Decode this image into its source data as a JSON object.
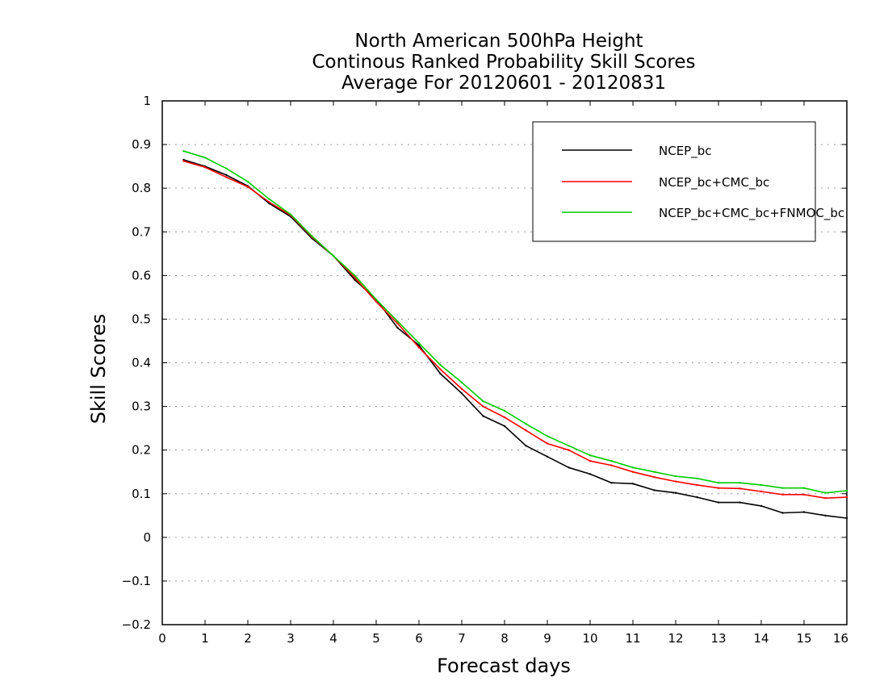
{
  "chart_data": {
    "type": "line",
    "title": [
      "North American 500hPa Height",
      "Continous Ranked Probability Skill Scores",
      "Average For 20120601 - 20120831"
    ],
    "xlabel": "Forecast days",
    "ylabel": "Skill Scores",
    "xlim": [
      0,
      16
    ],
    "ylim": [
      -0.2,
      1
    ],
    "xticks": [
      "0",
      "1",
      "2",
      "3",
      "4",
      "5",
      "6",
      "7",
      "8",
      "9",
      "10",
      "11",
      "12",
      "13",
      "14",
      "15",
      "16"
    ],
    "yticks": [
      "1",
      "0.9",
      "0.8",
      "0.7",
      "0.6",
      "0.5",
      "0.4",
      "0.3",
      "0.2",
      "0.1",
      "0",
      "-0.1",
      "-0.2"
    ],
    "grid": true,
    "legend_position": "top-right",
    "x": [
      0.5,
      1,
      1.5,
      2,
      2.5,
      3,
      3.5,
      4,
      4.5,
      5,
      5.5,
      6,
      6.5,
      7,
      7.5,
      8,
      8.5,
      9,
      9.5,
      10,
      10.5,
      11,
      11.5,
      12,
      12.5,
      13,
      13.5,
      14,
      14.5,
      15,
      15.5,
      16
    ],
    "series": [
      {
        "name": "NCEP_bc",
        "color": "#000000",
        "values": [
          0.865,
          0.85,
          0.83,
          0.805,
          0.765,
          0.735,
          0.685,
          0.645,
          0.59,
          0.545,
          0.48,
          0.44,
          0.375,
          0.33,
          0.278,
          0.255,
          0.21,
          0.185,
          0.16,
          0.145,
          0.125,
          0.123,
          0.108,
          0.102,
          0.092,
          0.08,
          0.08,
          0.072,
          0.056,
          0.058,
          0.05,
          0.044
        ]
      },
      {
        "name": "NCEP_bc+CMC_bc",
        "color": "#ff0000",
        "values": [
          0.862,
          0.848,
          0.825,
          0.803,
          0.768,
          0.738,
          0.688,
          0.645,
          0.595,
          0.54,
          0.49,
          0.435,
          0.385,
          0.34,
          0.3,
          0.275,
          0.245,
          0.215,
          0.2,
          0.175,
          0.165,
          0.15,
          0.138,
          0.128,
          0.12,
          0.113,
          0.112,
          0.105,
          0.098,
          0.098,
          0.09,
          0.092
        ]
      },
      {
        "name": "NCEP_bc+CMC_bc+FNMOC_bc",
        "color": "#00cc00",
        "values": [
          0.885,
          0.87,
          0.845,
          0.815,
          0.775,
          0.74,
          0.69,
          0.645,
          0.6,
          0.545,
          0.495,
          0.445,
          0.395,
          0.355,
          0.312,
          0.29,
          0.26,
          0.232,
          0.21,
          0.188,
          0.175,
          0.16,
          0.15,
          0.14,
          0.135,
          0.125,
          0.125,
          0.12,
          0.113,
          0.113,
          0.102,
          0.107
        ]
      }
    ]
  }
}
